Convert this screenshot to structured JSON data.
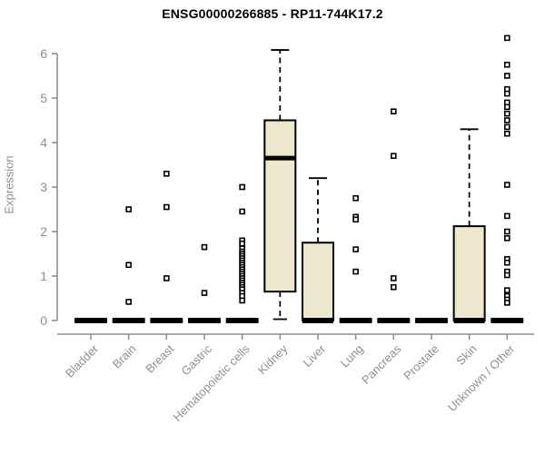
{
  "chart_data": {
    "type": "boxplot",
    "title": "ENSG00000266885 - RP11-744K17.2",
    "ylabel": "Expression",
    "xlabel": "",
    "ylim": [
      0,
      6.5
    ],
    "yticks": [
      0,
      1,
      2,
      3,
      4,
      5,
      6
    ],
    "grid": false,
    "legend": "none",
    "categories": [
      "Bladder",
      "Brain",
      "Breast",
      "Gastric",
      "Hematopoietic cells",
      "Kidney",
      "Liver",
      "Lung",
      "Pancreas",
      "Prostate",
      "Skin",
      "Unknown / Other"
    ],
    "boxes": [
      {
        "category": "Bladder",
        "low": 0,
        "q1": 0,
        "median": 0,
        "q3": 0,
        "high": 0,
        "outliers": []
      },
      {
        "category": "Brain",
        "low": 0,
        "q1": 0,
        "median": 0,
        "q3": 0,
        "high": 0,
        "outliers": [
          2.5,
          1.25,
          0.42
        ]
      },
      {
        "category": "Breast",
        "low": 0,
        "q1": 0,
        "median": 0,
        "q3": 0,
        "high": 0,
        "outliers": [
          3.3,
          2.55,
          0.95
        ]
      },
      {
        "category": "Gastric",
        "low": 0,
        "q1": 0,
        "median": 0,
        "q3": 0,
        "high": 0,
        "outliers": [
          1.65,
          0.62
        ]
      },
      {
        "category": "Hematopoietic cells",
        "low": 0,
        "q1": 0,
        "median": 0,
        "q3": 0,
        "high": 0,
        "outliers": [
          3.0,
          2.45,
          1.8,
          1.73,
          1.62,
          1.55,
          1.5,
          1.45,
          1.4,
          1.35,
          1.3,
          1.25,
          1.2,
          1.15,
          1.1,
          1.05,
          1.0,
          0.95,
          0.9,
          0.85,
          0.8,
          0.75,
          0.7,
          0.62,
          0.55,
          0.45
        ]
      },
      {
        "category": "Kidney",
        "low": 0.03,
        "q1": 0.65,
        "median": 3.65,
        "q3": 4.5,
        "high": 6.08,
        "outliers": []
      },
      {
        "category": "Liver",
        "low": 0,
        "q1": 0,
        "median": 0,
        "q3": 1.75,
        "high": 3.2,
        "outliers": []
      },
      {
        "category": "Lung",
        "low": 0,
        "q1": 0,
        "median": 0,
        "q3": 0,
        "high": 0,
        "outliers": [
          2.75,
          2.33,
          2.27,
          1.6,
          1.1
        ]
      },
      {
        "category": "Pancreas",
        "low": 0,
        "q1": 0,
        "median": 0,
        "q3": 0,
        "high": 0,
        "outliers": [
          4.7,
          3.7,
          0.95,
          0.75
        ]
      },
      {
        "category": "Prostate",
        "low": 0,
        "q1": 0,
        "median": 0,
        "q3": 0,
        "high": 0,
        "outliers": []
      },
      {
        "category": "Skin",
        "low": 0,
        "q1": 0,
        "median": 0,
        "q3": 2.12,
        "high": 4.3,
        "outliers": []
      },
      {
        "category": "Unknown / Other",
        "low": 0,
        "q1": 0,
        "median": 0,
        "q3": 0,
        "high": 0,
        "outliers": [
          6.35,
          5.75,
          5.5,
          5.2,
          5.1,
          4.9,
          4.8,
          4.65,
          4.5,
          4.35,
          4.2,
          3.05,
          2.35,
          2.0,
          1.85,
          1.38,
          1.3,
          1.1,
          1.02,
          0.68,
          0.55,
          0.47,
          0.4
        ]
      }
    ],
    "colors": {
      "box_fill": "#ece7cd",
      "box_stroke": "#000000",
      "median": "#000000",
      "whisker": "#000000",
      "outlier_stroke": "#000000",
      "outlier_fill": "#ffffff",
      "axis": "#8f8f8f",
      "tick_text": "#8f8f8f",
      "title_text": "#000000",
      "background": "#ffffff"
    }
  }
}
